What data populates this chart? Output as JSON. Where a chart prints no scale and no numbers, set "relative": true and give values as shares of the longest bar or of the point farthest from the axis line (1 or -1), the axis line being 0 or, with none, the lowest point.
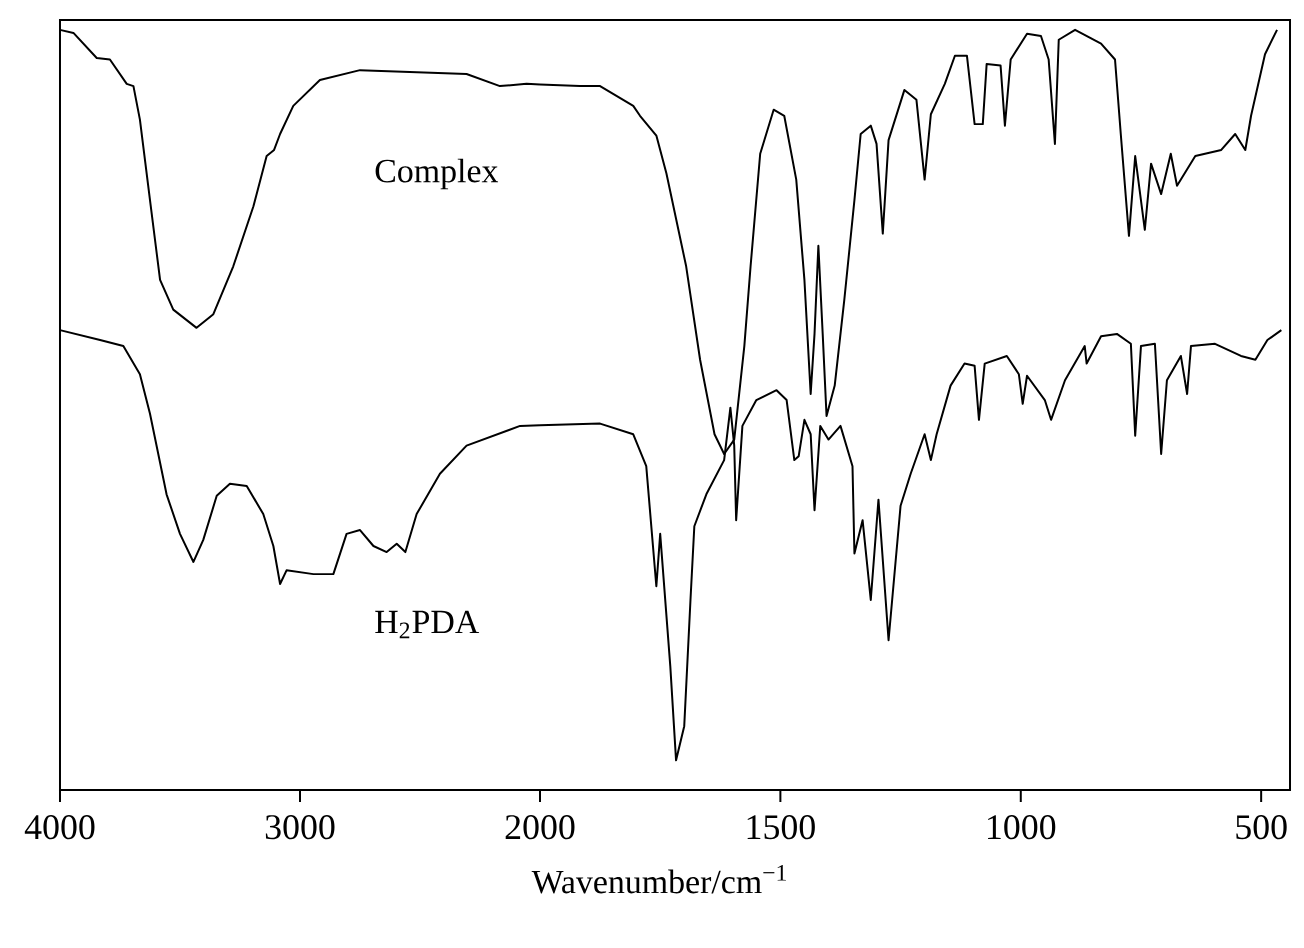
{
  "chart_data": [
    {
      "type": "line",
      "relative": true,
      "xlim": [
        4000,
        2000
      ],
      "xticks": [
        4000,
        3000,
        2000
      ],
      "tick_labels": "x",
      "series": [
        {
          "name": "Complex",
          "color": "#000000",
          "x": [
            4000,
            3944,
            3847,
            3792,
            3722,
            3694,
            3667,
            3625,
            3583,
            3528,
            3431,
            3361,
            3278,
            3194,
            3139,
            3108,
            3083,
            3028,
            2917,
            2750,
            2306,
            2167,
            2056,
            2000
          ],
          "values": [
            1.0,
            0.996,
            0.963,
            0.961,
            0.929,
            0.926,
            0.882,
            0.776,
            0.671,
            0.632,
            0.608,
            0.626,
            0.689,
            0.768,
            0.834,
            0.842,
            0.863,
            0.9,
            0.934,
            0.947,
            0.942,
            0.926,
            0.929,
            0.928
          ]
        },
        {
          "name": "H$_{2}$PDA",
          "color": "#000000",
          "x": [
            4000,
            3833,
            3736,
            3667,
            3625,
            3556,
            3500,
            3444,
            3403,
            3347,
            3292,
            3222,
            3153,
            3111,
            3083,
            3056,
            2944,
            2861,
            2806,
            2750,
            2694,
            2639,
            2597,
            2561,
            2514,
            2417,
            2306,
            2083,
            2000
          ],
          "values": [
            0.605,
            0.592,
            0.584,
            0.547,
            0.495,
            0.389,
            0.337,
            0.3,
            0.329,
            0.387,
            0.403,
            0.4,
            0.363,
            0.321,
            0.271,
            0.289,
            0.284,
            0.284,
            0.337,
            0.342,
            0.321,
            0.313,
            0.324,
            0.313,
            0.363,
            0.416,
            0.453,
            0.479,
            0.48
          ]
        }
      ]
    },
    {
      "type": "line",
      "relative": true,
      "xlabel": "Wavenumber/cm$^{−1}$",
      "xlim": [
        2000,
        440
      ],
      "xticks": [
        {
          "value": 2000,
          "label": null
        },
        1500,
        1000,
        500
      ],
      "tick_labels": "x",
      "series": [
        {
          "color": "#000000",
          "x": [
            2000,
            1917,
            1875,
            1806,
            1792,
            1758,
            1737,
            1696,
            1667,
            1637,
            1617,
            1596,
            1575,
            1562,
            1542,
            1514,
            1492,
            1467,
            1450,
            1437,
            1429,
            1421,
            1412,
            1404,
            1387,
            1367,
            1346,
            1333,
            1312,
            1300,
            1287,
            1275,
            1242,
            1217,
            1200,
            1187,
            1158,
            1137,
            1112,
            1096,
            1079,
            1071,
            1042,
            1033,
            1021,
            987,
            958,
            942,
            929,
            921,
            887,
            833,
            804,
            792,
            775,
            762,
            742,
            729,
            708,
            688,
            675,
            637,
            583,
            554,
            533,
            521,
            492,
            467
          ],
          "values": [
            0.928,
            0.926,
            0.926,
            0.9,
            0.887,
            0.861,
            0.811,
            0.689,
            0.566,
            0.468,
            0.442,
            0.461,
            0.584,
            0.689,
            0.837,
            0.895,
            0.887,
            0.803,
            0.671,
            0.521,
            0.6,
            0.716,
            0.6,
            0.492,
            0.532,
            0.645,
            0.776,
            0.863,
            0.874,
            0.85,
            0.732,
            0.855,
            0.921,
            0.908,
            0.803,
            0.889,
            0.929,
            0.966,
            0.966,
            0.876,
            0.876,
            0.955,
            0.953,
            0.874,
            0.961,
            0.995,
            0.992,
            0.961,
            0.85,
            0.987,
            1.0,
            0.982,
            0.961,
            0.863,
            0.729,
            0.834,
            0.737,
            0.824,
            0.784,
            0.837,
            0.795,
            0.834,
            0.842,
            0.863,
            0.842,
            0.887,
            0.968,
            1.0
          ]
        },
        {
          "color": "#000000",
          "x": [
            2000,
            1875,
            1806,
            1779,
            1758,
            1750,
            1729,
            1717,
            1700,
            1687,
            1679,
            1654,
            1617,
            1604,
            1596,
            1592,
            1579,
            1550,
            1508,
            1487,
            1471,
            1462,
            1450,
            1437,
            1429,
            1417,
            1400,
            1375,
            1350,
            1346,
            1329,
            1312,
            1296,
            1275,
            1250,
            1229,
            1200,
            1187,
            1175,
            1146,
            1117,
            1096,
            1087,
            1075,
            1029,
            1004,
            996,
            987,
            950,
            937,
            908,
            867,
            863,
            833,
            800,
            771,
            762,
            750,
            721,
            708,
            696,
            667,
            654,
            646,
            596,
            542,
            512,
            487,
            458
          ],
          "values": [
            0.48,
            0.482,
            0.468,
            0.426,
            0.268,
            0.337,
            0.163,
            0.039,
            0.084,
            0.25,
            0.347,
            0.389,
            0.434,
            0.503,
            0.453,
            0.355,
            0.479,
            0.513,
            0.526,
            0.513,
            0.434,
            0.439,
            0.487,
            0.468,
            0.368,
            0.479,
            0.461,
            0.479,
            0.426,
            0.311,
            0.355,
            0.25,
            0.382,
            0.197,
            0.374,
            0.416,
            0.468,
            0.434,
            0.468,
            0.532,
            0.561,
            0.558,
            0.487,
            0.561,
            0.571,
            0.547,
            0.508,
            0.545,
            0.513,
            0.487,
            0.539,
            0.584,
            0.561,
            0.597,
            0.6,
            0.587,
            0.466,
            0.584,
            0.587,
            0.442,
            0.539,
            0.571,
            0.521,
            0.584,
            0.587,
            0.571,
            0.566,
            0.592,
            0.605
          ]
        }
      ]
    }
  ]
}
